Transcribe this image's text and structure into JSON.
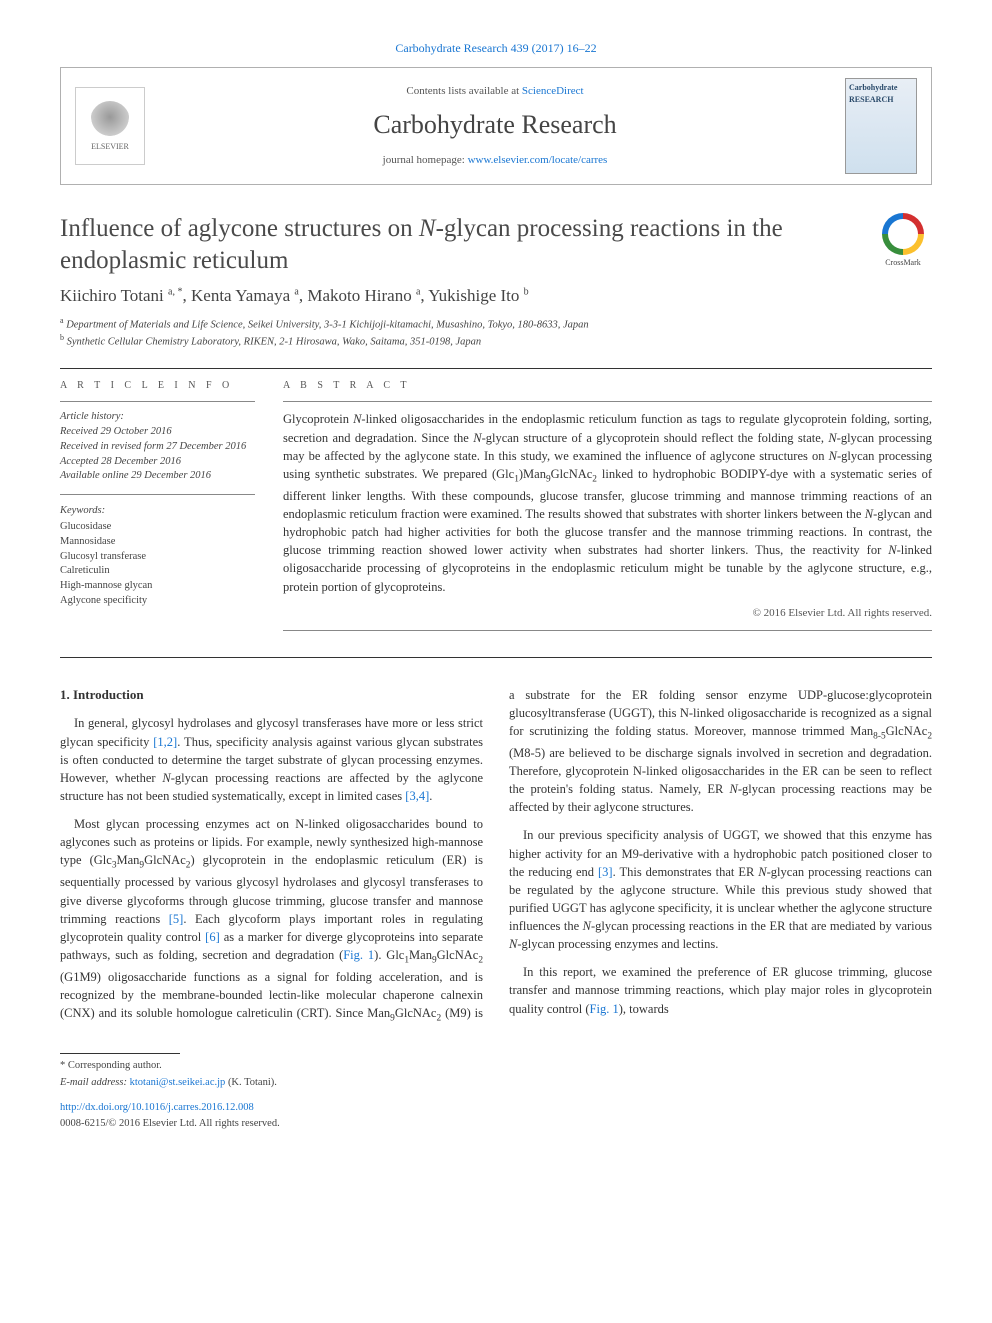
{
  "top_citation": "Carbohydrate Research 439 (2017) 16–22",
  "header": {
    "contents_prefix": "Contents lists available at ",
    "contents_link": "ScienceDirect",
    "journal": "Carbohydrate Research",
    "homepage_prefix": "journal homepage: ",
    "homepage_url": "www.elsevier.com/locate/carres",
    "publisher_label": "ELSEVIER",
    "cover_label": "Carbohydrate RESEARCH"
  },
  "crossmark_label": "CrossMark",
  "title": "Influence of aglycone structures on N-glycan processing reactions in the endoplasmic reticulum",
  "authors_html": "Kiichiro Totani <sup>a, *</sup>, Kenta Yamaya <sup>a</sup>, Makoto Hirano <sup>a</sup>, Yukishige Ito <sup>b</sup>",
  "affiliations": {
    "a": "Department of Materials and Life Science, Seikei University, 3-3-1 Kichijoji-kitamachi, Musashino, Tokyo, 180-8633, Japan",
    "b": "Synthetic Cellular Chemistry Laboratory, RIKEN, 2-1 Hirosawa, Wako, Saitama, 351-0198, Japan"
  },
  "article_info_head": "A R T I C L E  I N F O",
  "abstract_head": "A B S T R A C T",
  "history_label": "Article history:",
  "history": {
    "received": "Received 29 October 2016",
    "revised": "Received in revised form 27 December 2016",
    "accepted": "Accepted 28 December 2016",
    "online": "Available online 29 December 2016"
  },
  "keywords_label": "Keywords:",
  "keywords": [
    "Glucosidase",
    "Mannosidase",
    "Glucosyl transferase",
    "Calreticulin",
    "High-mannose glycan",
    "Aglycone specificity"
  ],
  "abstract": "Glycoprotein N-linked oligosaccharides in the endoplasmic reticulum function as tags to regulate glycoprotein folding, sorting, secretion and degradation. Since the N-glycan structure of a glycoprotein should reflect the folding state, N-glycan processing may be affected by the aglycone state. In this study, we examined the influence of aglycone structures on N-glycan processing using synthetic substrates. We prepared (Glc₁)Man₉GlcNAc₂ linked to hydrophobic BODIPY-dye with a systematic series of different linker lengths. With these compounds, glucose transfer, glucose trimming and mannose trimming reactions of an endoplasmic reticulum fraction were examined. The results showed that substrates with shorter linkers between the N-glycan and hydrophobic patch had higher activities for both the glucose transfer and the mannose trimming reactions. In contrast, the glucose trimming reaction showed lower activity when substrates had shorter linkers. Thus, the reactivity for N-linked oligosaccharide processing of glycoproteins in the endoplasmic reticulum might be tunable by the aglycone structure, e.g., protein portion of glycoproteins.",
  "abstract_copyright": "© 2016 Elsevier Ltd. All rights reserved.",
  "section1_title": "1. Introduction",
  "paragraphs": {
    "p1": "In general, glycosyl hydrolases and glycosyl transferases have more or less strict glycan specificity [1,2]. Thus, specificity analysis against various glycan substrates is often conducted to determine the target substrate of glycan processing enzymes. However, whether N-glycan processing reactions are affected by the aglycone structure has not been studied systematically, except in limited cases [3,4].",
    "p2": "Most glycan processing enzymes act on N-linked oligosaccharides bound to aglycones such as proteins or lipids. For example, newly synthesized high-mannose type (Glc₃Man₉GlcNAc₂) glycoprotein in the endoplasmic reticulum (ER) is sequentially processed by various glycosyl hydrolases and glycosyl transferases to give diverse glycoforms through glucose trimming, glucose transfer and mannose trimming reactions [5]. Each glycoform plays important roles in regulating glycoprotein quality control [6] as a marker for diverge glycoproteins into separate pathways, such as folding, secretion and degradation (Fig. 1). Glc₁Man₉GlcNAc₂ (G1M9) oligosaccharide functions as a signal for folding acceleration, and is",
    "p3": "recognized by the membrane-bounded lectin-like molecular chaperone calnexin (CNX) and its soluble homologue calreticulin (CRT). Since Man₉GlcNAc₂ (M9) is a substrate for the ER folding sensor enzyme UDP-glucose:glycoprotein glucosyltransferase (UGGT), this N-linked oligosaccharide is recognized as a signal for scrutinizing the folding status. Moreover, mannose trimmed Man₈₅GlcNAc₂ (M8-5) are believed to be discharge signals involved in secretion and degradation. Therefore, glycoprotein N-linked oligosaccharides in the ER can be seen to reflect the protein's folding status. Namely, ER N-glycan processing reactions may be affected by their aglycone structures.",
    "p4": "In our previous specificity analysis of UGGT, we showed that this enzyme has higher activity for an M9-derivative with a hydrophobic patch positioned closer to the reducing end [3]. This demonstrates that ER N-glycan processing reactions can be regulated by the aglycone structure. While this previous study showed that purified UGGT has aglycone specificity, it is unclear whether the aglycone structure influences the N-glycan processing reactions in the ER that are mediated by various N-glycan processing enzymes and lectins.",
    "p5": "In this report, we examined the preference of ER glucose trimming, glucose transfer and mannose trimming reactions, which play major roles in glycoprotein quality control (Fig. 1), towards"
  },
  "footer": {
    "corr": "* Corresponding author.",
    "email_label": "E-mail address:",
    "email": "ktotani@st.seikei.ac.jp",
    "email_suffix": "(K. Totani).",
    "doi_prefix": "http://dx.doi.org/",
    "doi": "10.1016/j.carres.2016.12.008",
    "issn_line": "0008-6215/© 2016 Elsevier Ltd. All rights reserved."
  },
  "refs": {
    "r12": "[1,2]",
    "r34": "[3,4]",
    "r5": "[5]",
    "r6": "[6]",
    "r3": "[3]",
    "fig1": "Fig. 1"
  },
  "colors": {
    "link": "#1976d2",
    "text": "#333333",
    "muted": "#555555",
    "rule": "#333333"
  }
}
